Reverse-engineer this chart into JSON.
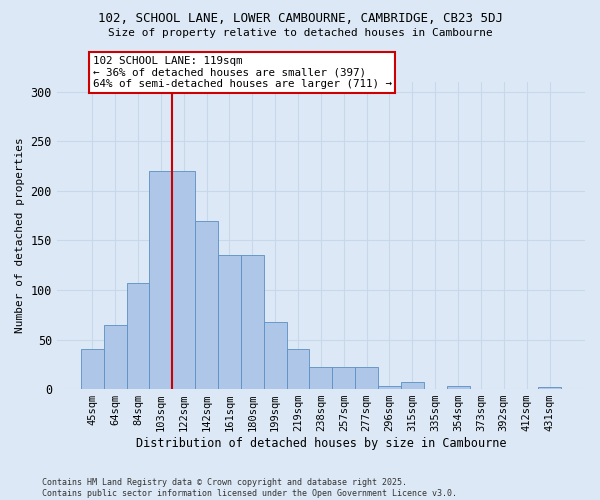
{
  "title_line1": "102, SCHOOL LANE, LOWER CAMBOURNE, CAMBRIDGE, CB23 5DJ",
  "title_line2": "Size of property relative to detached houses in Cambourne",
  "xlabel": "Distribution of detached houses by size in Cambourne",
  "ylabel": "Number of detached properties",
  "categories": [
    "45sqm",
    "64sqm",
    "84sqm",
    "103sqm",
    "122sqm",
    "142sqm",
    "161sqm",
    "180sqm",
    "199sqm",
    "219sqm",
    "238sqm",
    "257sqm",
    "277sqm",
    "296sqm",
    "315sqm",
    "335sqm",
    "354sqm",
    "373sqm",
    "392sqm",
    "412sqm",
    "431sqm"
  ],
  "values": [
    40,
    65,
    107,
    220,
    220,
    170,
    135,
    135,
    68,
    40,
    22,
    22,
    22,
    3,
    7,
    0,
    3,
    0,
    0,
    0,
    2
  ],
  "bar_color": "#aec6e8",
  "bar_edge_color": "#5a8fc3",
  "vline_x": 3.5,
  "vline_color": "#cc0000",
  "annotation_text": "102 SCHOOL LANE: 119sqm\n← 36% of detached houses are smaller (397)\n64% of semi-detached houses are larger (711) →",
  "ylim": [
    0,
    310
  ],
  "yticks": [
    0,
    50,
    100,
    150,
    200,
    250,
    300
  ],
  "grid_color": "#c8d8ea",
  "bg_color": "#dce8f5",
  "footnote": "Contains HM Land Registry data © Crown copyright and database right 2025.\nContains public sector information licensed under the Open Government Licence v3.0."
}
